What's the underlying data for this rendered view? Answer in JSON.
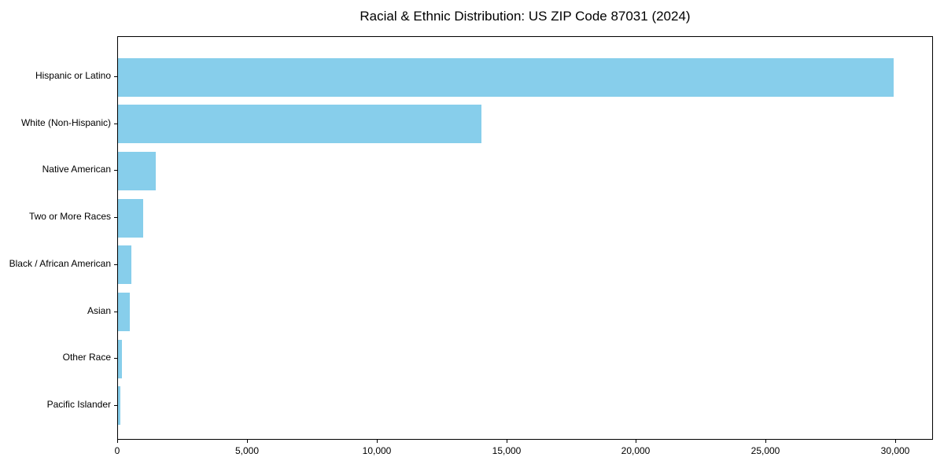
{
  "title": "Racial & Ethnic Distribution: US ZIP Code 87031 (2024)",
  "chart_data": {
    "type": "bar",
    "orientation": "horizontal",
    "title": "Racial & Ethnic Distribution: US ZIP Code 87031 (2024)",
    "categories": [
      "Hispanic or Latino",
      "White (Non-Hispanic)",
      "Native American",
      "Two or More Races",
      "Black / African American",
      "Asian",
      "Other Race",
      "Pacific Islander"
    ],
    "values": [
      29900,
      14000,
      1450,
      960,
      510,
      450,
      150,
      90
    ],
    "xlabel": "",
    "ylabel": "",
    "xlim": [
      0,
      31450
    ],
    "xticks": [
      0,
      5000,
      10000,
      15000,
      20000,
      25000,
      30000
    ],
    "xtick_labels": [
      "0",
      "5,000",
      "10,000",
      "15,000",
      "20,000",
      "25,000",
      "30,000"
    ],
    "bar_color": "#87CEEB",
    "spine_color": "#000000",
    "grid": false,
    "legend": null
  }
}
